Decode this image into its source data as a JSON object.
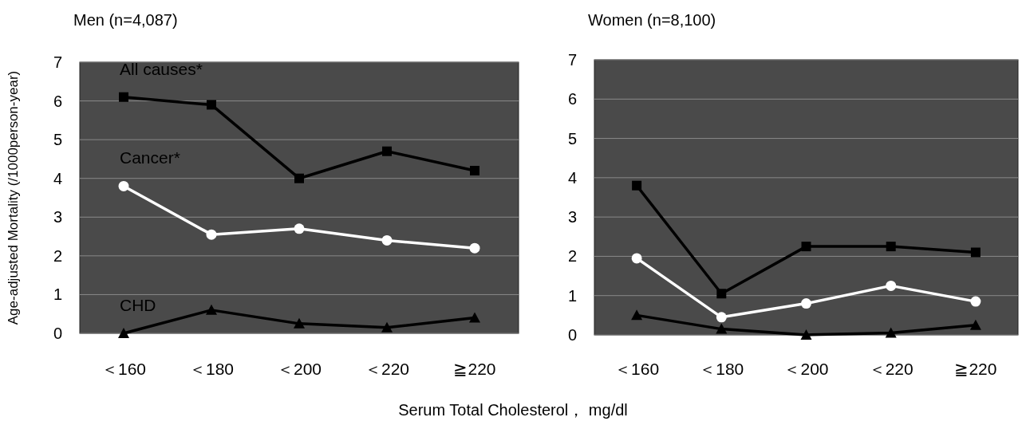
{
  "chart_data": [
    {
      "type": "line",
      "title": "Men (n=4,087)",
      "ylabel": "Age-adjusted Mortality (/1000person-year)",
      "xlabel": "Serum Total Cholesterol， mg/dl",
      "categories": [
        "＜160",
        "＜180",
        "＜200",
        "＜220",
        "≧220"
      ],
      "ylim": [
        0,
        7
      ],
      "yticks": [
        0,
        1,
        2,
        3,
        4,
        5,
        6,
        7
      ],
      "grid": "y",
      "line_style": "solid",
      "series": [
        {
          "name": "All causes*",
          "color": "#000000",
          "marker": "square",
          "values": [
            6.1,
            5.9,
            4.0,
            4.7,
            4.2
          ]
        },
        {
          "name": "Cancer*",
          "color": "#ffffff",
          "marker": "circle",
          "values": [
            3.8,
            2.55,
            2.7,
            2.4,
            2.2
          ]
        },
        {
          "name": "CHD",
          "color": "#000000",
          "marker": "triangle",
          "values": [
            0.0,
            0.6,
            0.25,
            0.15,
            0.4
          ]
        }
      ]
    },
    {
      "type": "line",
      "title": "Women (n=8,100)",
      "categories": [
        "＜160",
        "＜180",
        "＜200",
        "＜220",
        "≧220"
      ],
      "ylim": [
        0,
        7
      ],
      "yticks": [
        0,
        1,
        2,
        3,
        4,
        5,
        6,
        7
      ],
      "grid": "y",
      "line_style": "solid",
      "series": [
        {
          "color": "#000000",
          "marker": "square",
          "values": [
            3.8,
            1.05,
            2.25,
            2.25,
            2.1
          ]
        },
        {
          "color": "#ffffff",
          "marker": "circle",
          "values": [
            1.95,
            0.45,
            0.8,
            1.25,
            0.85
          ]
        },
        {
          "color": "#000000",
          "marker": "triangle",
          "values": [
            0.5,
            0.15,
            0.0,
            0.05,
            0.25
          ]
        }
      ]
    }
  ]
}
